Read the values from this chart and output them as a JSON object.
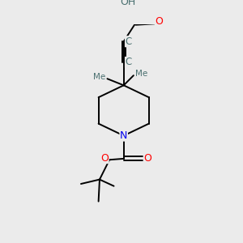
{
  "background_color": "#ebebeb",
  "atom_colors": {
    "C": "#4a7070",
    "O": "#ff0000",
    "N": "#0000ee",
    "H": "#4a7070"
  },
  "bond_color": "#000000",
  "figsize": [
    3.0,
    3.0
  ],
  "dpi": 100,
  "xlim": [
    0,
    10
  ],
  "ylim": [
    0,
    10
  ]
}
